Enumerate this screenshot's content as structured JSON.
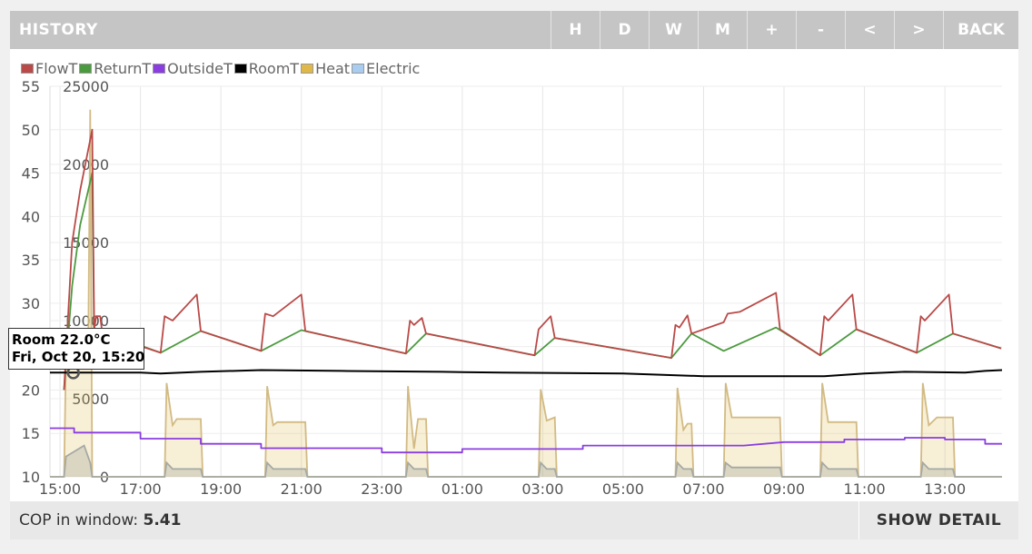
{
  "header": {
    "title": "HISTORY",
    "buttons": [
      "H",
      "D",
      "W",
      "M",
      "+",
      "-",
      "<",
      ">",
      "BACK"
    ]
  },
  "legend": [
    {
      "name": "FlowT",
      "color": "#b94a48"
    },
    {
      "name": "ReturnT",
      "color": "#4c9a3f"
    },
    {
      "name": "OutsideT",
      "color": "#8a3de0"
    },
    {
      "name": "RoomT",
      "color": "#000000"
    },
    {
      "name": "Heat",
      "color": "#e0b84a"
    },
    {
      "name": "Electric",
      "color": "#a9cdf0"
    }
  ],
  "tooltip": {
    "line1": "Room 22.0°C",
    "line2": "Fri, Oct 20, 15:20"
  },
  "footer": {
    "cop_label": "COP in window:",
    "cop_value": "5.41",
    "detail_button": "SHOW DETAIL"
  },
  "chart_data": {
    "type": "line",
    "x_start": "Fri, Oct 20, 14:45",
    "x_end": "Sat, Oct 21, 14:10",
    "x_ticks": [
      "15:00",
      "17:00",
      "19:00",
      "21:00",
      "23:00",
      "01:00",
      "03:00",
      "05:00",
      "07:00",
      "09:00",
      "11:00",
      "13:00"
    ],
    "y_left": {
      "ticks": [
        10,
        15,
        20,
        25,
        30,
        35,
        40,
        45,
        50,
        55
      ],
      "range": [
        10,
        55
      ]
    },
    "y_right": {
      "ticks": [
        0,
        5000,
        10000,
        15000,
        20000,
        25000
      ],
      "range": [
        0,
        25000
      ]
    },
    "grid": true,
    "legend_position": "top-left",
    "series": [
      {
        "name": "FlowT",
        "axis": "left",
        "color": "#b94a48",
        "points": [
          [
            15.1,
            20
          ],
          [
            15.3,
            37
          ],
          [
            15.5,
            43
          ],
          [
            15.8,
            50
          ],
          [
            15.85,
            27
          ],
          [
            15.9,
            28.5
          ],
          [
            16.0,
            28.5
          ],
          [
            16.05,
            26.5
          ],
          [
            17.5,
            24.3
          ],
          [
            17.6,
            28.5
          ],
          [
            17.8,
            28
          ],
          [
            18.4,
            31
          ],
          [
            18.5,
            26.8
          ],
          [
            20.0,
            24.5
          ],
          [
            20.1,
            28.8
          ],
          [
            20.3,
            28.5
          ],
          [
            21.0,
            31
          ],
          [
            21.1,
            26.8
          ],
          [
            23.6,
            24.2
          ],
          [
            23.7,
            28
          ],
          [
            23.8,
            27.5
          ],
          [
            24.0,
            28.3
          ],
          [
            24.1,
            26.5
          ],
          [
            26.8,
            24.0
          ],
          [
            26.9,
            27
          ],
          [
            27.2,
            28.5
          ],
          [
            27.3,
            26
          ],
          [
            30.2,
            23.7
          ],
          [
            30.3,
            27.5
          ],
          [
            30.4,
            27.2
          ],
          [
            30.6,
            28.6
          ],
          [
            30.7,
            26.5
          ],
          [
            31.5,
            27.8
          ],
          [
            31.6,
            28.8
          ],
          [
            31.9,
            29
          ],
          [
            32.8,
            31.2
          ],
          [
            32.9,
            27
          ],
          [
            33.9,
            24
          ],
          [
            34.0,
            28.5
          ],
          [
            34.1,
            28
          ],
          [
            34.7,
            31
          ],
          [
            34.8,
            27
          ],
          [
            36.3,
            24.3
          ],
          [
            36.4,
            28.5
          ],
          [
            36.5,
            28
          ],
          [
            37.1,
            31
          ],
          [
            37.2,
            26.5
          ],
          [
            38.4,
            24.8
          ]
        ]
      },
      {
        "name": "ReturnT",
        "axis": "left",
        "color": "#4c9a3f",
        "points": [
          [
            15.1,
            20
          ],
          [
            15.3,
            32
          ],
          [
            15.5,
            39
          ],
          [
            15.8,
            45
          ],
          [
            15.85,
            25.5
          ],
          [
            16.0,
            26.8
          ],
          [
            17.5,
            24.3
          ],
          [
            18.5,
            26.8
          ],
          [
            20.0,
            24.5
          ],
          [
            21.0,
            26.9
          ],
          [
            23.6,
            24.2
          ],
          [
            24.1,
            26.5
          ],
          [
            26.8,
            24.0
          ],
          [
            27.3,
            26
          ],
          [
            30.2,
            23.7
          ],
          [
            30.7,
            26.5
          ],
          [
            31.5,
            24.5
          ],
          [
            32.8,
            27.2
          ],
          [
            33.9,
            24
          ],
          [
            34.8,
            27
          ],
          [
            36.3,
            24.3
          ],
          [
            37.2,
            26.5
          ],
          [
            38.4,
            24.8
          ]
        ]
      },
      {
        "name": "OutsideT",
        "axis": "left",
        "color": "#8a3de0",
        "points": [
          [
            14.75,
            15.6
          ],
          [
            15.35,
            15.6
          ],
          [
            15.35,
            15.1
          ],
          [
            17.0,
            15.1
          ],
          [
            17.0,
            14.4
          ],
          [
            18.5,
            14.4
          ],
          [
            18.5,
            13.8
          ],
          [
            20.0,
            13.8
          ],
          [
            20.0,
            13.3
          ],
          [
            23.0,
            13.3
          ],
          [
            23.0,
            12.8
          ],
          [
            25.0,
            12.8
          ],
          [
            25.0,
            13.2
          ],
          [
            28.0,
            13.2
          ],
          [
            28.0,
            13.6
          ],
          [
            32.0,
            13.6
          ],
          [
            33.0,
            14.0
          ],
          [
            34.5,
            14.0
          ],
          [
            34.5,
            14.3
          ],
          [
            36.0,
            14.3
          ],
          [
            36.0,
            14.5
          ],
          [
            37.0,
            14.5
          ],
          [
            37.0,
            14.3
          ],
          [
            38.0,
            14.3
          ],
          [
            38.0,
            13.8
          ],
          [
            38.42,
            13.8
          ]
        ]
      },
      {
        "name": "RoomT",
        "axis": "left",
        "color": "#000000",
        "points": [
          [
            14.75,
            22.0
          ],
          [
            17.0,
            22.0
          ],
          [
            17.5,
            21.9
          ],
          [
            18.5,
            22.1
          ],
          [
            20.0,
            22.3
          ],
          [
            22.0,
            22.2
          ],
          [
            24.5,
            22.1
          ],
          [
            26.0,
            22.0
          ],
          [
            29.0,
            21.9
          ],
          [
            31.0,
            21.6
          ],
          [
            34.0,
            21.6
          ],
          [
            35.0,
            21.9
          ],
          [
            36.0,
            22.1
          ],
          [
            37.5,
            22.0
          ],
          [
            38.0,
            22.2
          ],
          [
            38.42,
            22.3
          ]
        ]
      },
      {
        "name": "Heat",
        "axis": "right",
        "color": "#e0b84a",
        "points": [
          [
            14.75,
            0
          ],
          [
            15.1,
            0
          ],
          [
            15.15,
            8000
          ],
          [
            15.7,
            8000
          ],
          [
            15.75,
            23500
          ],
          [
            15.8,
            0
          ],
          [
            17.6,
            0
          ],
          [
            17.65,
            6000
          ],
          [
            17.8,
            3300
          ],
          [
            17.9,
            3700
          ],
          [
            18.5,
            3700
          ],
          [
            18.55,
            0
          ],
          [
            20.1,
            0
          ],
          [
            20.15,
            5800
          ],
          [
            20.3,
            3300
          ],
          [
            20.4,
            3500
          ],
          [
            21.1,
            3500
          ],
          [
            21.15,
            0
          ],
          [
            23.6,
            0
          ],
          [
            23.65,
            5800
          ],
          [
            23.8,
            1800
          ],
          [
            23.9,
            3700
          ],
          [
            24.1,
            3700
          ],
          [
            24.15,
            0
          ],
          [
            26.9,
            0
          ],
          [
            26.95,
            5600
          ],
          [
            27.1,
            3600
          ],
          [
            27.3,
            3800
          ],
          [
            27.35,
            0
          ],
          [
            30.3,
            0
          ],
          [
            30.35,
            5700
          ],
          [
            30.5,
            3000
          ],
          [
            30.6,
            3400
          ],
          [
            30.7,
            3400
          ],
          [
            30.75,
            0
          ],
          [
            31.5,
            0
          ],
          [
            31.55,
            6000
          ],
          [
            31.7,
            3800
          ],
          [
            32.9,
            3800
          ],
          [
            32.95,
            0
          ],
          [
            33.9,
            0
          ],
          [
            33.95,
            6000
          ],
          [
            34.1,
            3500
          ],
          [
            34.8,
            3500
          ],
          [
            34.85,
            0
          ],
          [
            36.4,
            0
          ],
          [
            36.45,
            6000
          ],
          [
            36.6,
            3300
          ],
          [
            36.8,
            3800
          ],
          [
            37.2,
            3800
          ],
          [
            37.25,
            0
          ],
          [
            38.42,
            0
          ]
        ]
      },
      {
        "name": "Electric",
        "axis": "right",
        "color": "#a9cdf0",
        "points": [
          [
            14.75,
            0
          ],
          [
            15.1,
            0
          ],
          [
            15.15,
            1300
          ],
          [
            15.6,
            2000
          ],
          [
            15.75,
            900
          ],
          [
            15.8,
            0
          ],
          [
            17.6,
            0
          ],
          [
            17.65,
            900
          ],
          [
            17.8,
            500
          ],
          [
            18.5,
            500
          ],
          [
            18.55,
            0
          ],
          [
            20.1,
            0
          ],
          [
            20.15,
            900
          ],
          [
            20.3,
            500
          ],
          [
            21.1,
            500
          ],
          [
            21.15,
            0
          ],
          [
            23.6,
            0
          ],
          [
            23.65,
            900
          ],
          [
            23.8,
            500
          ],
          [
            24.1,
            500
          ],
          [
            24.15,
            0
          ],
          [
            26.9,
            0
          ],
          [
            26.95,
            900
          ],
          [
            27.1,
            500
          ],
          [
            27.3,
            500
          ],
          [
            27.35,
            0
          ],
          [
            30.3,
            0
          ],
          [
            30.35,
            900
          ],
          [
            30.5,
            500
          ],
          [
            30.7,
            500
          ],
          [
            30.75,
            0
          ],
          [
            31.5,
            0
          ],
          [
            31.55,
            900
          ],
          [
            31.7,
            600
          ],
          [
            32.9,
            600
          ],
          [
            32.95,
            0
          ],
          [
            33.9,
            0
          ],
          [
            33.95,
            900
          ],
          [
            34.1,
            500
          ],
          [
            34.8,
            500
          ],
          [
            34.85,
            0
          ],
          [
            36.4,
            0
          ],
          [
            36.45,
            900
          ],
          [
            36.6,
            500
          ],
          [
            37.2,
            500
          ],
          [
            37.25,
            0
          ],
          [
            38.42,
            0
          ]
        ]
      }
    ]
  }
}
